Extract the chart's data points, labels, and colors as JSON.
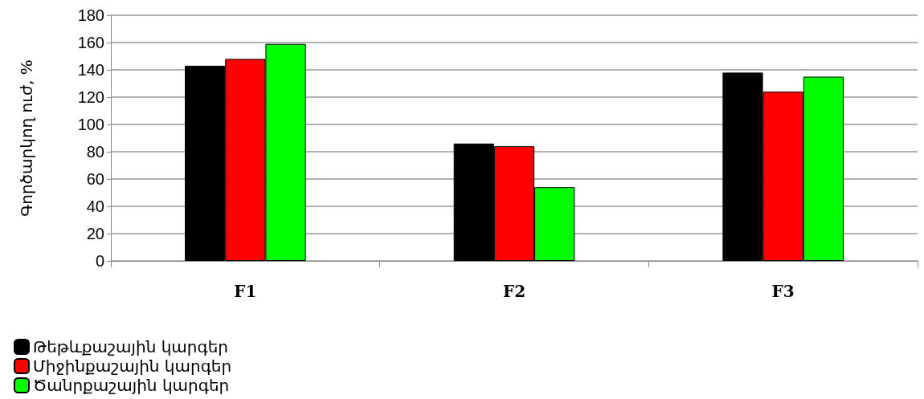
{
  "chart_data": {
    "type": "bar",
    "ylabel": "Գործարկող ուժ, %",
    "categories": [
      "F1",
      "F2",
      "F3"
    ],
    "series": [
      {
        "name": "Թեթևքաշային կարգեր",
        "color": "#000000",
        "values": [
          143,
          86,
          138
        ]
      },
      {
        "name": "Միջինքաշային կարգեր",
        "color": "#ff0000",
        "values": [
          148,
          84,
          124
        ]
      },
      {
        "name": "Ծանրքաշային կարգեր",
        "color": "#00ff00",
        "values": [
          159,
          54,
          135
        ]
      }
    ],
    "ylim": [
      0,
      180
    ],
    "yticks": [
      0,
      20,
      40,
      60,
      80,
      100,
      120,
      140,
      160,
      180
    ],
    "grid": "y",
    "legend": "bottom left"
  }
}
